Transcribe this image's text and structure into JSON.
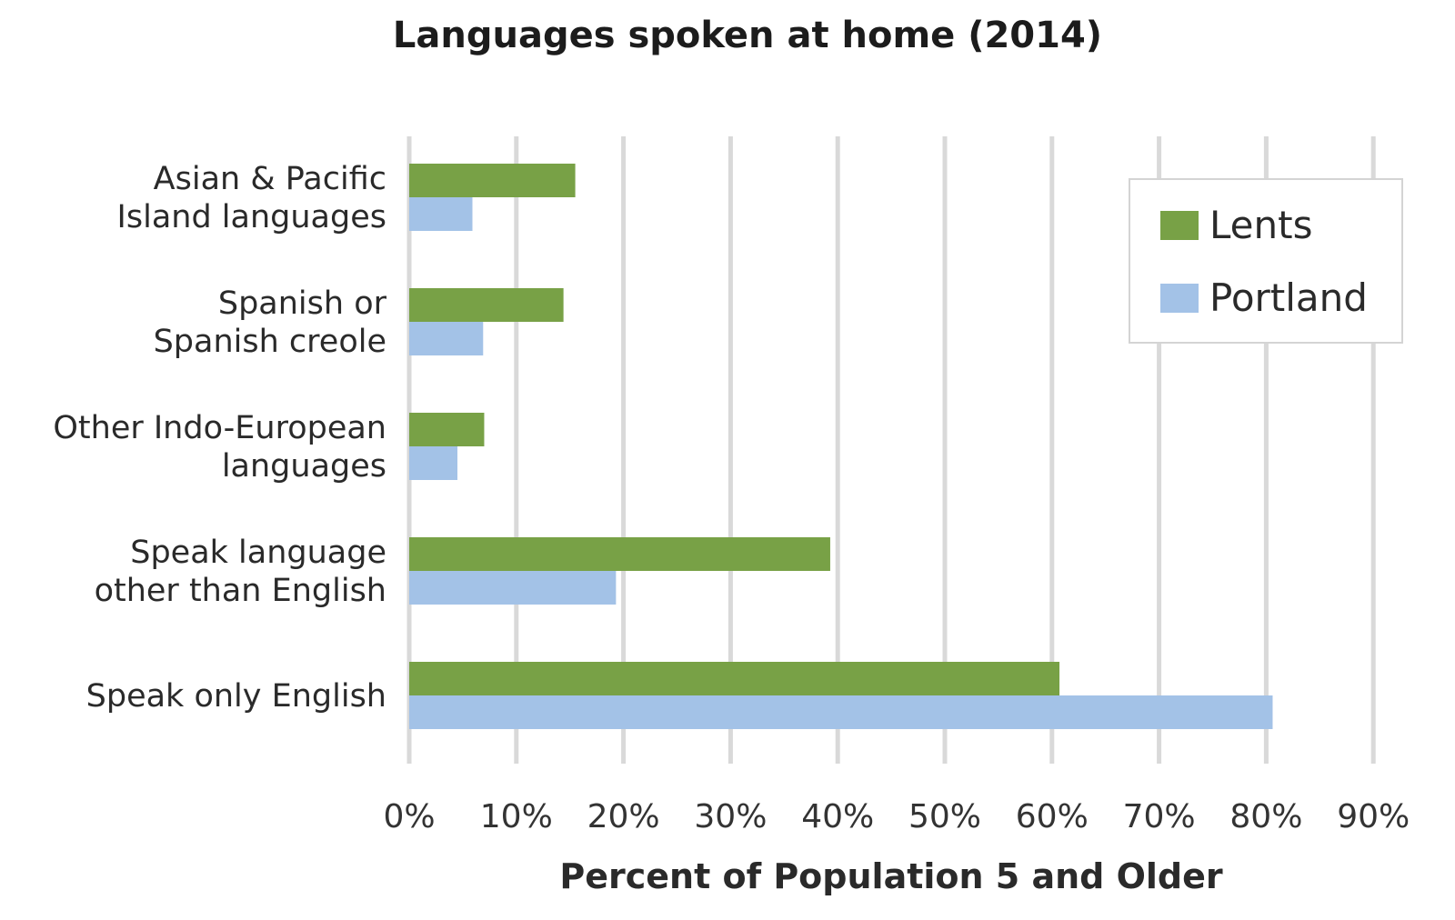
{
  "chart_data": {
    "type": "bar",
    "orientation": "horizontal",
    "title": "Languages spoken at home (2014)",
    "xlabel": "Percent of Population 5 and Older",
    "ylabel": "",
    "xlim": [
      0,
      90
    ],
    "x_ticks": [
      "0%",
      "10%",
      "20%",
      "30%",
      "40%",
      "50%",
      "60%",
      "70%",
      "80%",
      "90%"
    ],
    "grid": "vertical",
    "legend_position": "top-right",
    "categories": [
      [
        "Asian & Pacific",
        "Island languages"
      ],
      [
        "Spanish or",
        "Spanish creole"
      ],
      [
        "Other Indo-European",
        "languages"
      ],
      [
        "Speak language",
        "other than English"
      ],
      [
        "Speak only English"
      ]
    ],
    "series": [
      {
        "name": "Lents",
        "color": "#78a146",
        "values": [
          15.5,
          14.4,
          7.0,
          39.3,
          60.7
        ]
      },
      {
        "name": "Portland",
        "color": "#a3c2e7",
        "values": [
          5.9,
          6.9,
          4.5,
          19.3,
          80.6
        ]
      }
    ]
  }
}
